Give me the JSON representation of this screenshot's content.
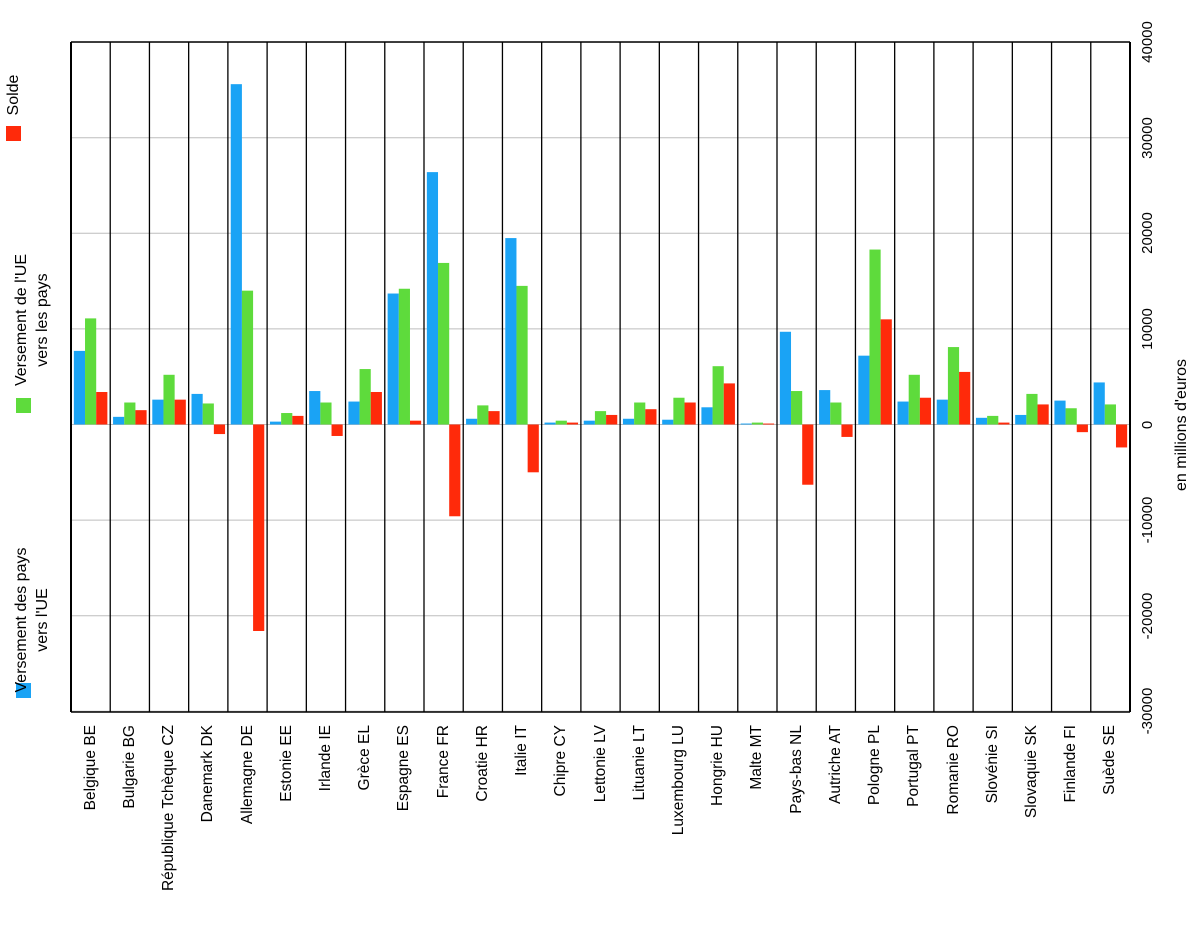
{
  "chart_data": {
    "type": "bar",
    "orientation": "rotated-90",
    "categories": [
      "Belgique BE",
      "Bulgarie BG",
      "République Tchèque CZ",
      "Danemark DK",
      "Allemagne DE",
      "Estonie EE",
      "Irlande IE",
      "Grèce EL",
      "Espagne ES",
      "France FR",
      "Croatie HR",
      "Italie IT",
      "Chipre CY",
      "Lettonie LV",
      "Lituanie LT",
      "Luxembourg LU",
      "Hongrie HU",
      "Malte MT",
      "Pays-bas NL",
      "Autriche AT",
      "Pologne PL",
      "Portugal PT",
      "Romanie RO",
      "Slovénie SI",
      "Slovaquie SK",
      "Finlande FI",
      "Suède SE"
    ],
    "series": [
      {
        "name": "Versement des pays vers l'UE",
        "color": "#1aa3f5",
        "values": [
          7700,
          800,
          2600,
          3200,
          35600,
          300,
          3500,
          2400,
          13700,
          26400,
          600,
          19500,
          200,
          400,
          600,
          500,
          1800,
          100,
          9700,
          3600,
          7200,
          2400,
          2600,
          700,
          1000,
          2500,
          4400
        ]
      },
      {
        "name": "Versement de l'UE vers les pays",
        "color": "#5edb3c",
        "values": [
          11100,
          2300,
          5200,
          2200,
          14000,
          1200,
          2300,
          5800,
          14200,
          16900,
          2000,
          14500,
          400,
          1400,
          2300,
          2800,
          6100,
          200,
          3500,
          2300,
          18300,
          5200,
          8100,
          900,
          3200,
          1700,
          2100
        ]
      },
      {
        "name": "Solde",
        "color": "#ff2a0a",
        "values": [
          3400,
          1500,
          2600,
          -1000,
          -21600,
          900,
          -1200,
          3400,
          400,
          -9600,
          1400,
          -5000,
          200,
          1000,
          1600,
          2300,
          4300,
          100,
          -6300,
          -1300,
          11000,
          2800,
          5500,
          200,
          2100,
          -800,
          -2400
        ]
      }
    ],
    "yticks": [
      "40000",
      "30000",
      "20000",
      "10000",
      "0",
      "-10000",
      "-20000",
      "-30000"
    ],
    "ylim": [
      -30000,
      40000
    ],
    "ylabel": "en millions d'euros",
    "grid": true,
    "legend_position": "left"
  },
  "legend": {
    "items": [
      {
        "label_line1": "Versement des pays",
        "label_line2": "vers l'UE",
        "color": "#1aa3f5"
      },
      {
        "label_line1": "Versement de l'UE",
        "label_line2": "vers les pays",
        "color": "#5edb3c"
      },
      {
        "label_line1": "Solde",
        "label_line2": "",
        "color": "#ff2a0a"
      }
    ]
  }
}
